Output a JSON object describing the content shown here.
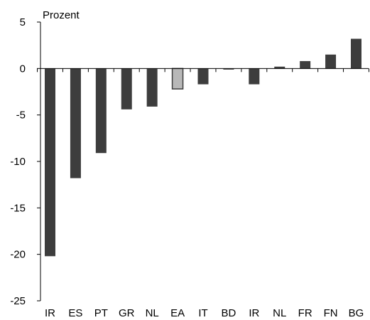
{
  "chart_data": {
    "type": "bar",
    "unit_label": "Prozent",
    "categories": [
      "IR",
      "ES",
      "PT",
      "GR",
      "NL",
      "EA",
      "IT",
      "BD",
      "IR",
      "NL",
      "FR",
      "FN",
      "BG"
    ],
    "values": [
      -20.2,
      -11.8,
      -9.1,
      -4.4,
      -4.1,
      -2.2,
      -1.7,
      -0.1,
      -1.7,
      0.2,
      0.8,
      1.5,
      3.2
    ],
    "highlight_index": 5,
    "ylim": [
      -25,
      5
    ],
    "yticks": [
      5,
      0,
      -5,
      -10,
      -15,
      -20,
      -25
    ],
    "grid": false,
    "colors": {
      "bar": "#3d3d3d",
      "highlight_fill": "#b8b8b8",
      "highlight_stroke": "#3d3d3d",
      "axis": "#000000"
    }
  }
}
